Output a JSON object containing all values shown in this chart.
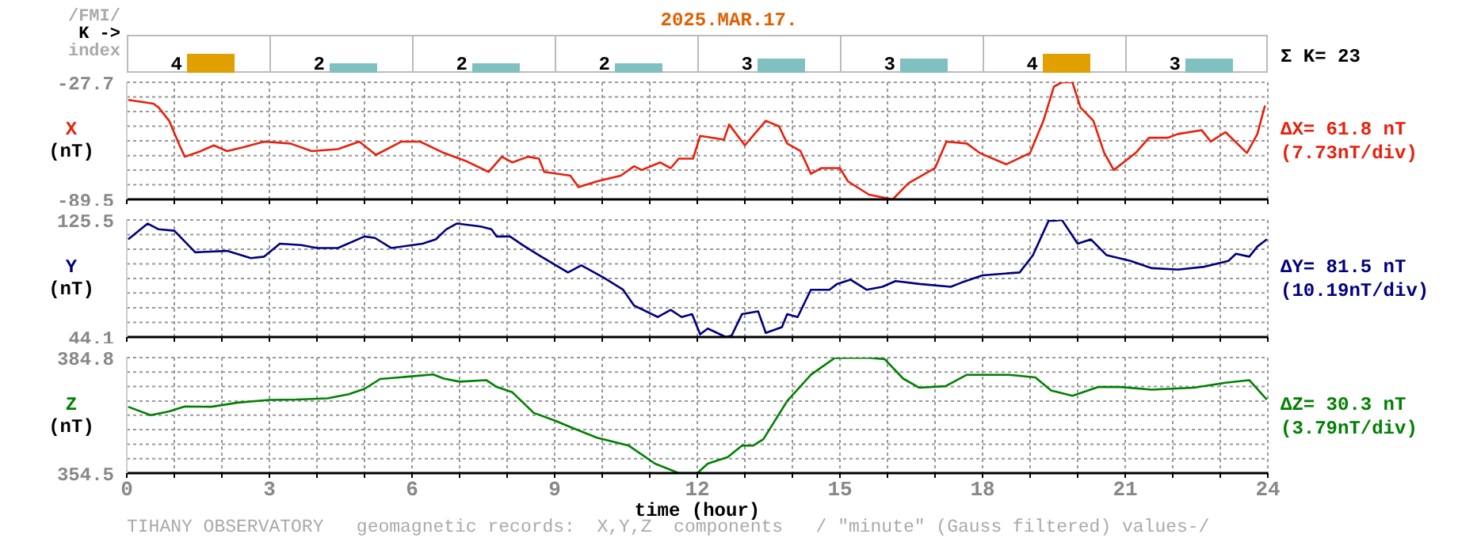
{
  "chart_data": [
    {
      "type": "bar",
      "title": "2025.MAR.17.",
      "ylabel": "/FMI/\nK ->\nindex",
      "categories": [
        null,
        null,
        null,
        null,
        null,
        null,
        null,
        null
      ],
      "values": [
        4,
        2,
        2,
        2,
        3,
        3,
        4,
        3
      ],
      "colors": [
        "#e0a000",
        "#80c0c0",
        "#80c0c0",
        "#80c0c0",
        "#80c0c0",
        "#80c0c0",
        "#e0a000",
        "#80c0c0"
      ],
      "data_labels": true,
      "annotations": [
        "Σ K= 23"
      ]
    },
    {
      "type": "line",
      "ylabel": "X (nT)",
      "annotations": [
        "ΔX= 61.8 nT",
        "(7.73nT/div)"
      ],
      "xlim": [
        0,
        24
      ],
      "ylim": [
        -89.5,
        -27.7
      ],
      "tick_labels": "y",
      "grid": true,
      "yticks": [
        -89.5,
        {
          "value": -81.8,
          "label": null
        },
        {
          "value": -74.1,
          "label": null
        },
        {
          "value": -66.4,
          "label": null
        },
        {
          "value": -58.6,
          "label": null
        },
        {
          "value": -50.9,
          "label": null
        },
        {
          "value": -43.2,
          "label": null
        },
        {
          "value": -35.4,
          "label": null
        },
        -27.7
      ],
      "xticks": [
        0,
        {
          "value": 1,
          "label": null
        },
        {
          "value": 2,
          "label": null
        },
        3,
        {
          "value": 4,
          "label": null
        },
        {
          "value": 5,
          "label": null
        },
        6,
        {
          "value": 7,
          "label": null
        },
        {
          "value": 8,
          "label": null
        },
        9,
        {
          "value": 10,
          "label": null
        },
        {
          "value": 11,
          "label": null
        },
        12,
        {
          "value": 13,
          "label": null
        },
        {
          "value": 14,
          "label": null
        },
        15,
        {
          "value": 16,
          "label": null
        },
        {
          "value": 17,
          "label": null
        },
        18,
        {
          "value": 19,
          "label": null
        },
        {
          "value": 20,
          "label": null
        },
        21,
        {
          "value": 22,
          "label": null
        },
        {
          "value": 23,
          "label": null
        },
        24
      ],
      "x": [
        0.03,
        0.56,
        0.67,
        0.89,
        1.11,
        1.22,
        1.56,
        1.83,
        2.11,
        2.44,
        2.89,
        3.44,
        3.89,
        4.44,
        4.89,
        5.24,
        5.78,
        6.17,
        6.67,
        7.11,
        7.61,
        7.89,
        8.11,
        8.44,
        8.67,
        8.78,
        9.33,
        9.5,
        9.89,
        10.39,
        10.67,
        10.83,
        11.22,
        11.44,
        11.61,
        11.91,
        12.06,
        12.33,
        12.56,
        12.67,
        13.0,
        13.44,
        13.72,
        13.89,
        14.17,
        14.39,
        14.61,
        15.0,
        15.17,
        15.61,
        16.11,
        16.44,
        17.0,
        17.24,
        17.67,
        17.94,
        18.5,
        19.0,
        19.28,
        19.5,
        19.67,
        19.89,
        20.06,
        20.33,
        20.56,
        20.76,
        21.22,
        21.5,
        21.89,
        22.11,
        22.61,
        22.8,
        23.11,
        23.56,
        23.78,
        23.94
      ],
      "series": [
        {
          "color": "#e8200c",
          "values": [
            -37,
            -39,
            -41,
            -48,
            -61,
            -67,
            -64,
            -61,
            -64,
            -62,
            -59,
            -60,
            -64,
            -63,
            -59,
            -66,
            -59,
            -59,
            -65,
            -69,
            -75,
            -67,
            -70,
            -67,
            -68,
            -75,
            -77,
            -83,
            -80,
            -77,
            -72,
            -74,
            -70,
            -73,
            -68,
            -68,
            -56,
            -57,
            -58,
            -50,
            -61,
            -48,
            -51,
            -60,
            -64,
            -76,
            -73,
            -73,
            -80,
            -87,
            -89.5,
            -81,
            -73,
            -59,
            -60,
            -65,
            -71,
            -65,
            -48,
            -30,
            -27.7,
            -27.7,
            -41,
            -48,
            -65,
            -74,
            -65,
            -57,
            -57,
            -55,
            -53,
            -59,
            -54,
            -65,
            -55,
            -40
          ]
        }
      ]
    },
    {
      "type": "line",
      "ylabel": "Y (nT)",
      "annotations": [
        "ΔY= 81.5 nT",
        "(10.19nT/div)"
      ],
      "xlim": [
        0,
        24
      ],
      "ylim": [
        44.1,
        125.5
      ],
      "tick_labels": "y",
      "grid": true,
      "yticks": [
        44.1,
        {
          "value": 54.3,
          "label": null
        },
        {
          "value": 64.5,
          "label": null
        },
        {
          "value": 74.7,
          "label": null
        },
        {
          "value": 84.8,
          "label": null
        },
        {
          "value": 95.0,
          "label": null
        },
        {
          "value": 105.2,
          "label": null
        },
        {
          "value": 115.3,
          "label": null
        },
        125.5
      ],
      "xticks": [
        0,
        {
          "value": 1,
          "label": null
        },
        {
          "value": 2,
          "label": null
        },
        3,
        {
          "value": 4,
          "label": null
        },
        {
          "value": 5,
          "label": null
        },
        6,
        {
          "value": 7,
          "label": null
        },
        {
          "value": 8,
          "label": null
        },
        9,
        {
          "value": 10,
          "label": null
        },
        {
          "value": 11,
          "label": null
        },
        12,
        {
          "value": 13,
          "label": null
        },
        {
          "value": 14,
          "label": null
        },
        15,
        {
          "value": 16,
          "label": null
        },
        {
          "value": 17,
          "label": null
        },
        18,
        {
          "value": 19,
          "label": null
        },
        {
          "value": 20,
          "label": null
        },
        21,
        {
          "value": 22,
          "label": null
        },
        {
          "value": 23,
          "label": null
        },
        24
      ],
      "x": [
        0.03,
        0.44,
        0.67,
        1.0,
        1.44,
        2.11,
        2.61,
        2.89,
        3.22,
        3.67,
        4.0,
        4.44,
        5.0,
        5.22,
        5.56,
        6.22,
        6.5,
        6.72,
        6.94,
        7.44,
        7.67,
        7.78,
        8.06,
        8.33,
        8.67,
        9.28,
        9.56,
        10.0,
        10.44,
        10.67,
        11.17,
        11.44,
        11.67,
        11.89,
        12.06,
        12.22,
        12.6,
        12.72,
        12.94,
        13.28,
        13.44,
        13.78,
        13.89,
        14.11,
        14.39,
        14.78,
        14.94,
        15.22,
        15.56,
        15.89,
        16.17,
        16.67,
        17.33,
        17.56,
        18.0,
        18.78,
        19.06,
        19.39,
        19.5,
        19.67,
        20.0,
        20.28,
        20.61,
        21.11,
        21.56,
        22.11,
        22.67,
        23.17,
        23.33,
        23.61,
        23.78,
        23.98
      ],
      "series": [
        {
          "color": "#000080",
          "values": [
            112,
            123,
            119,
            118,
            103,
            104,
            99,
            100,
            109,
            108,
            106,
            106,
            114,
            113,
            106,
            109,
            112,
            119,
            123,
            121,
            119,
            114,
            114,
            108,
            101,
            89,
            94,
            86,
            77,
            66,
            58,
            63,
            58,
            60,
            46,
            50,
            44.1,
            45,
            60,
            62,
            47,
            51,
            60,
            58,
            77,
            77,
            81,
            84,
            77,
            79,
            83,
            81,
            79,
            82,
            87,
            89,
            101,
            125,
            125,
            125.5,
            109,
            112,
            101,
            97,
            92,
            91,
            93,
            97,
            102,
            100,
            107,
            112
          ]
        }
      ]
    },
    {
      "type": "line",
      "ylabel": "Z (nT)",
      "xlabel": "time (hour)",
      "annotations": [
        "ΔZ= 30.3 nT",
        "(3.79nT/div)",
        "TIHANY OBSERVATORY   geomagnetic records:  X,Y,Z  components   / \"minute\" (Gauss filtered) values-/"
      ],
      "xlim": [
        0,
        24
      ],
      "ylim": [
        354.5,
        384.8
      ],
      "grid": true,
      "yticks": [
        354.5,
        {
          "value": 358.3,
          "label": null
        },
        {
          "value": 362.1,
          "label": null
        },
        {
          "value": 365.9,
          "label": null
        },
        {
          "value": 369.7,
          "label": null
        },
        {
          "value": 373.4,
          "label": null
        },
        {
          "value": 377.2,
          "label": null
        },
        {
          "value": 381.0,
          "label": null
        },
        384.8
      ],
      "xticks": [
        0,
        {
          "value": 1,
          "label": null
        },
        {
          "value": 2,
          "label": null
        },
        3,
        {
          "value": 4,
          "label": null
        },
        {
          "value": 5,
          "label": null
        },
        6,
        {
          "value": 7,
          "label": null
        },
        {
          "value": 8,
          "label": null
        },
        9,
        {
          "value": 10,
          "label": null
        },
        {
          "value": 11,
          "label": null
        },
        12,
        {
          "value": 13,
          "label": null
        },
        {
          "value": 14,
          "label": null
        },
        15,
        {
          "value": 16,
          "label": null
        },
        {
          "value": 17,
          "label": null
        },
        18,
        {
          "value": 19,
          "label": null
        },
        {
          "value": 20,
          "label": null
        },
        21,
        {
          "value": 22,
          "label": null
        },
        {
          "value": 23,
          "label": null
        },
        24
      ],
      "x": [
        0.03,
        0.5,
        0.89,
        1.22,
        1.78,
        2.33,
        3.0,
        3.56,
        4.22,
        4.67,
        5.0,
        5.33,
        6.0,
        6.44,
        6.67,
        7.0,
        7.56,
        7.78,
        8.11,
        8.56,
        9.0,
        9.33,
        9.89,
        10.56,
        11.11,
        11.61,
        12.0,
        12.22,
        12.64,
        12.94,
        13.17,
        13.39,
        13.89,
        14.39,
        14.89,
        15.56,
        15.94,
        16.33,
        16.67,
        17.22,
        17.67,
        18.56,
        19.11,
        19.44,
        19.89,
        20.44,
        20.89,
        21.56,
        22.44,
        23.11,
        23.61,
        23.98
      ],
      "series": [
        {
          "color": "#008000",
          "values": [
            371.9,
            369.7,
            370.7,
            372.0,
            371.9,
            373.0,
            373.7,
            373.8,
            374.1,
            375.2,
            376.6,
            379.2,
            379.9,
            380.4,
            379.3,
            378.5,
            378.9,
            377.1,
            375.7,
            370.3,
            368.3,
            366.6,
            363.8,
            361.7,
            357.0,
            354.5,
            354.5,
            357.0,
            358.7,
            361.7,
            361.7,
            363.4,
            373.4,
            380.3,
            384.7,
            384.8,
            384.4,
            379.3,
            376.9,
            377.3,
            380.3,
            380.3,
            379.6,
            376.2,
            374.8,
            377.1,
            377.1,
            376.4,
            376.9,
            378.2,
            378.9,
            373.8
          ]
        }
      ]
    }
  ]
}
